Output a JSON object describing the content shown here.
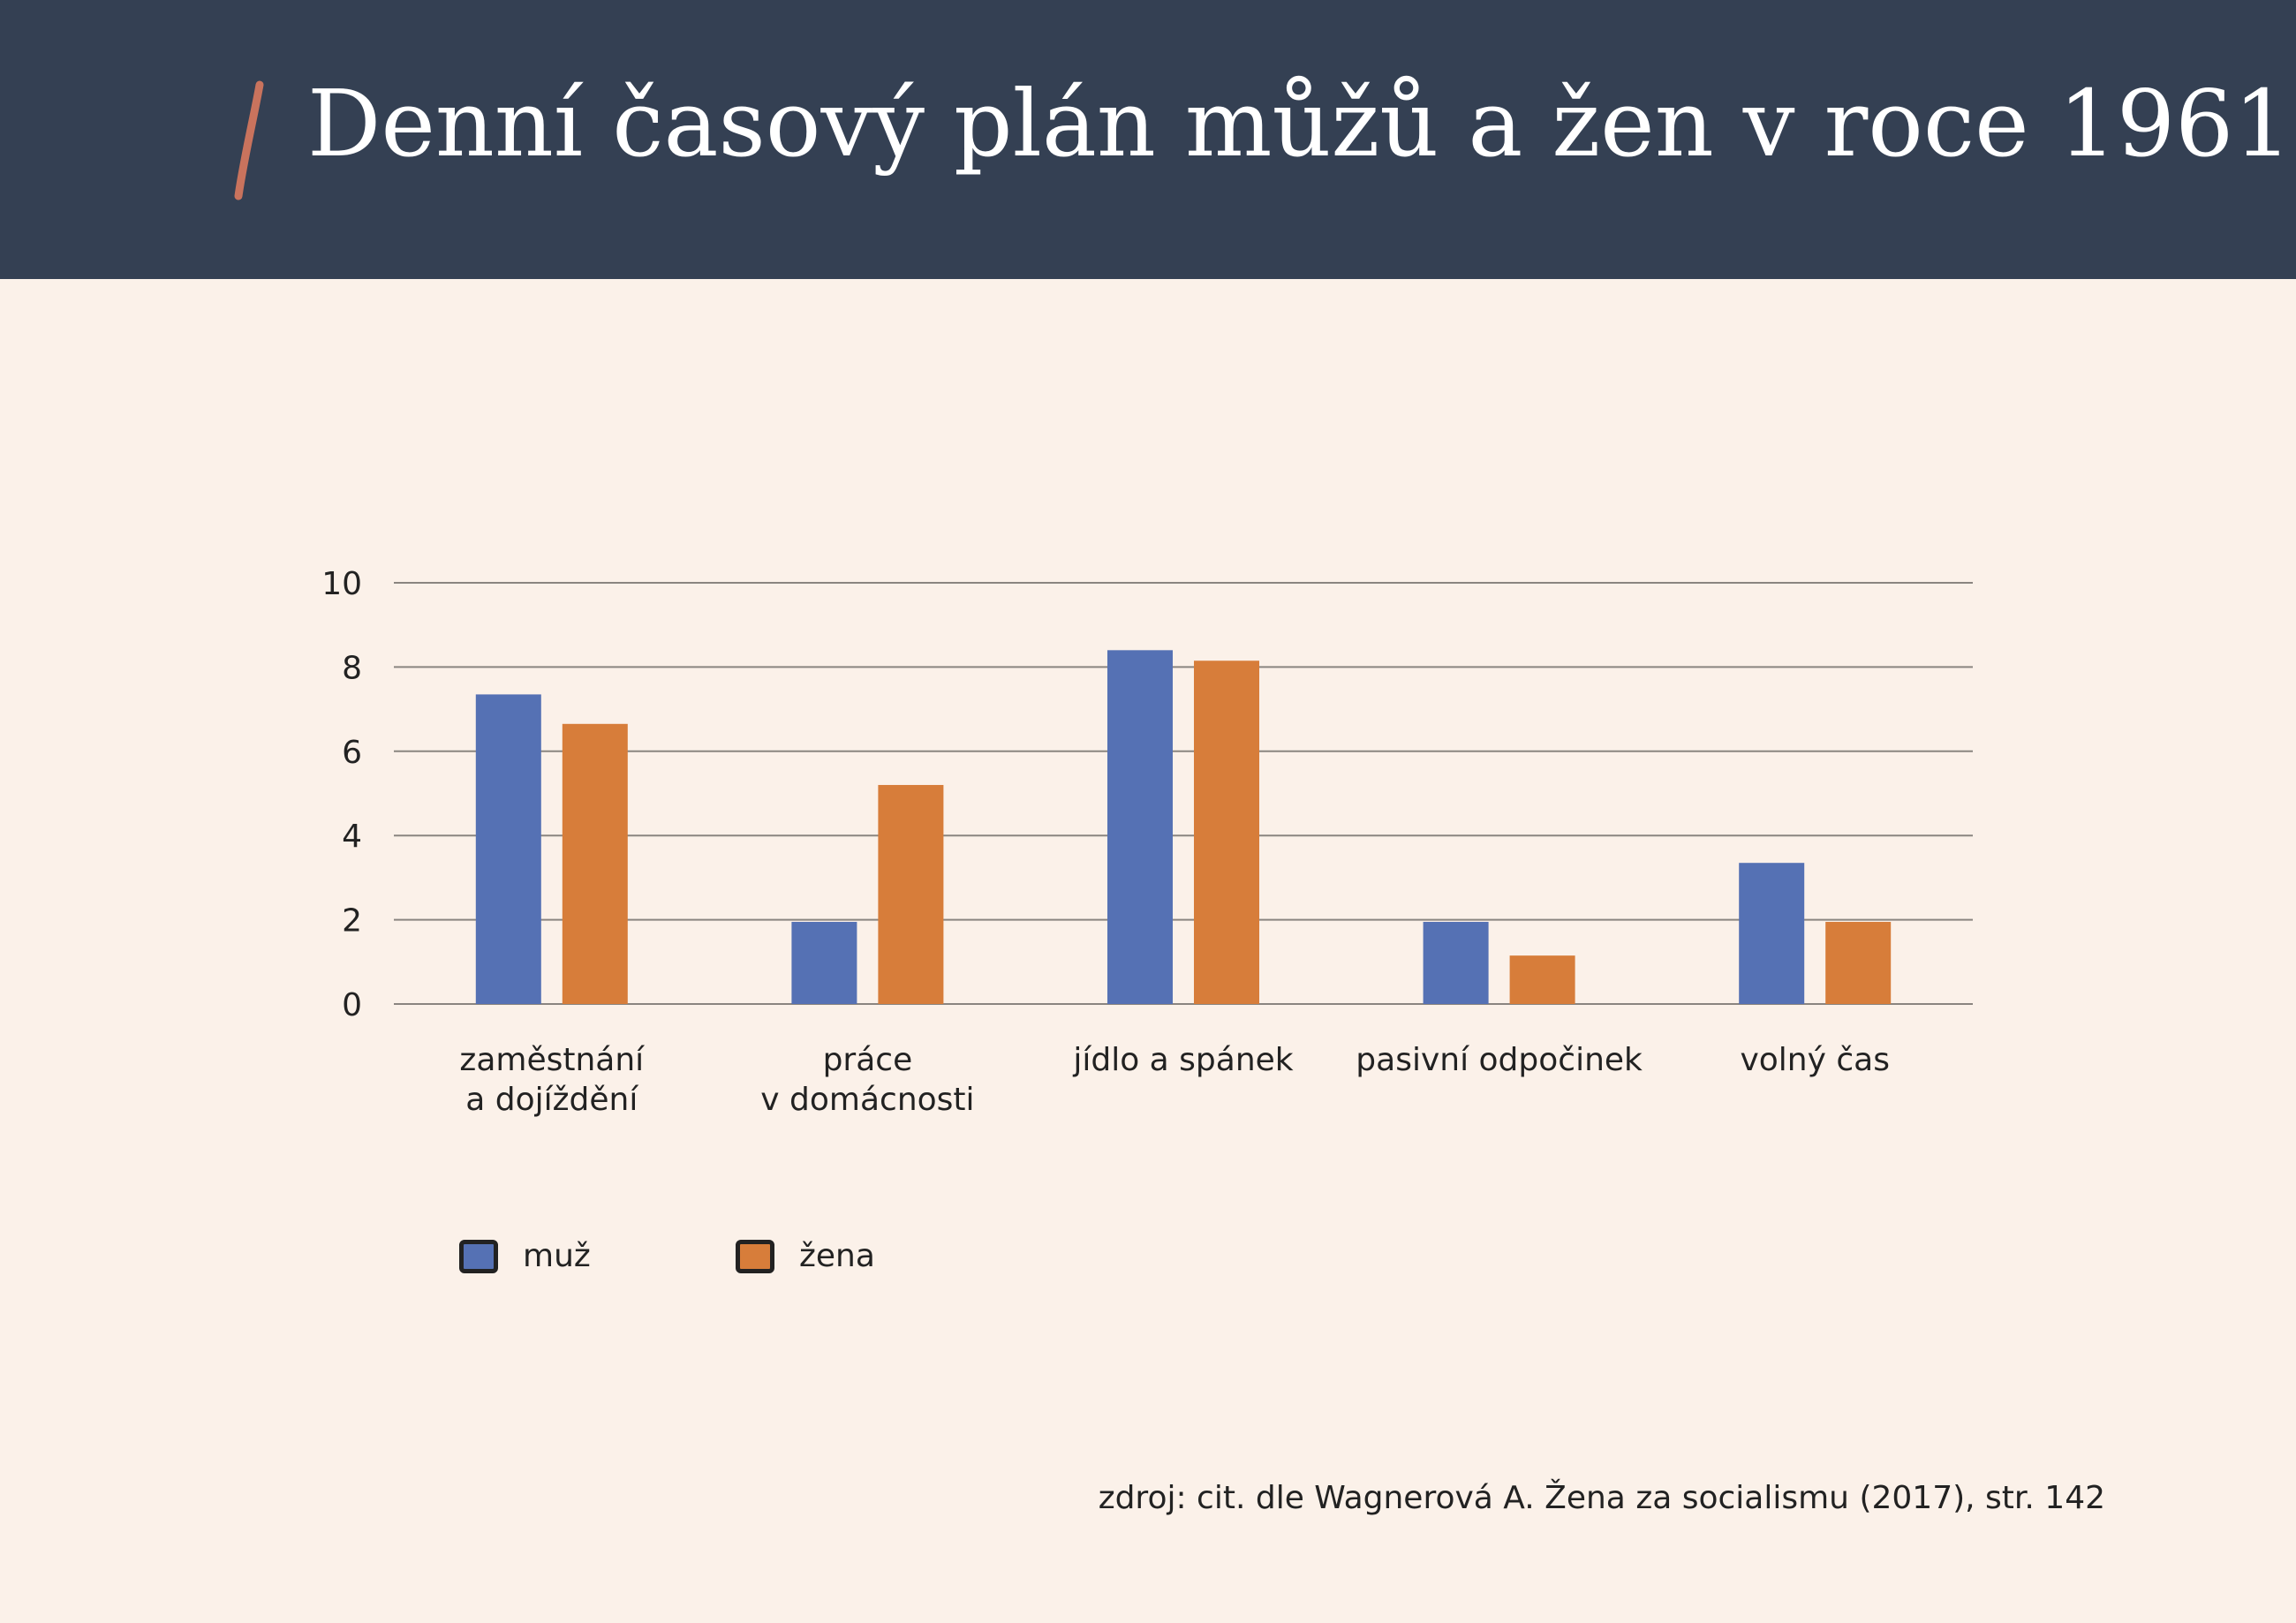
{
  "header": {
    "title": "Denní časový plán můžů a žen v roce 1961"
  },
  "colors": {
    "header_bg": "#344053",
    "page_bg": "#fbf1e9",
    "accent": "#c9735d",
    "muz": "#5571b4",
    "zena": "#d77d3a"
  },
  "chart_data": {
    "type": "bar",
    "title": "Denní časový plán můžů a žen v roce 1961",
    "xlabel": "",
    "ylabel": "",
    "ylim": [
      0,
      10
    ],
    "yticks": [
      0,
      2,
      4,
      6,
      8,
      10
    ],
    "grid": true,
    "legend_position": "bottom-left",
    "categories": [
      [
        "zaměstnání",
        "a dojíždění"
      ],
      [
        "práce",
        "v domácnosti"
      ],
      [
        "jídlo a spánek"
      ],
      [
        "pasivní odpočinek"
      ],
      [
        "volný čas"
      ]
    ],
    "series": [
      {
        "name": "muž",
        "color": "#5571b4",
        "values": [
          7.35,
          1.95,
          8.4,
          1.95,
          3.35
        ]
      },
      {
        "name": "žena",
        "color": "#d77d3a",
        "values": [
          6.65,
          5.2,
          8.15,
          1.15,
          1.95
        ]
      }
    ]
  },
  "legend": {
    "muz_label": "muž",
    "zena_label": "žena"
  },
  "footer": {
    "source": "zdroj: cit. dle Wagnerová A. Žena za socialismu (2017), str. 142"
  }
}
